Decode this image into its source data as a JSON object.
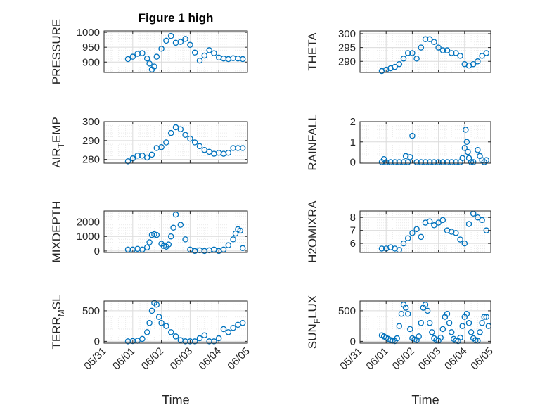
{
  "figure": {
    "title": "Figure 1 high"
  },
  "colors": {
    "marker": "#0072BD",
    "axis": "#262626",
    "grid_major": "#dcdcdc",
    "grid_minor": "#ebebeb"
  },
  "chart_data": [
    {
      "type": "scatter",
      "ylabel_main": "PRESSURE",
      "ylabel_sub": "",
      "ylabel_tail": "",
      "ylim": [
        865,
        1005
      ],
      "yticks": [
        900,
        950,
        1000
      ],
      "xlim": [
        "2020-05-31",
        "2020-06-05"
      ],
      "xticks": [
        "05/31",
        "06/01",
        "06/02",
        "06/03",
        "06/04",
        "06/05"
      ],
      "show_xticklabels": false,
      "grid": "major+minor",
      "x": [
        "05/31 20:00",
        "06/01 00:00",
        "06/01 04:00",
        "06/01 08:00",
        "06/01 12:00",
        "06/01 14:00",
        "06/01 16:00",
        "06/01 18:00",
        "06/01 20:00",
        "06/02 00:00",
        "06/02 04:00",
        "06/02 08:00",
        "06/02 12:00",
        "06/02 16:00",
        "06/02 20:00",
        "06/03 00:00",
        "06/03 04:00",
        "06/03 08:00",
        "06/03 12:00",
        "06/03 16:00",
        "06/03 20:00",
        "06/04 00:00",
        "06/04 04:00",
        "06/04 08:00",
        "06/04 12:00",
        "06/04 16:00",
        "06/04 20:00"
      ],
      "y": [
        910,
        918,
        928,
        930,
        912,
        895,
        875,
        885,
        918,
        945,
        972,
        988,
        965,
        968,
        978,
        958,
        932,
        905,
        922,
        940,
        930,
        915,
        912,
        910,
        913,
        912,
        910
      ]
    },
    {
      "type": "scatter",
      "ylabel_main": "THETA",
      "ylabel_sub": "",
      "ylabel_tail": "",
      "ylim": [
        286,
        301
      ],
      "yticks": [
        290,
        295,
        300
      ],
      "xlim": [
        "2020-05-31",
        "2020-06-05"
      ],
      "xticks": [
        "05/31",
        "06/01",
        "06/02",
        "06/03",
        "06/04",
        "06/05"
      ],
      "show_xticklabels": false,
      "grid": "major+minor",
      "x": [
        "05/31 20:00",
        "06/01 00:00",
        "06/01 04:00",
        "06/01 08:00",
        "06/01 12:00",
        "06/01 16:00",
        "06/01 20:00",
        "06/02 00:00",
        "06/02 04:00",
        "06/02 08:00",
        "06/02 12:00",
        "06/02 16:00",
        "06/02 20:00",
        "06/03 00:00",
        "06/03 04:00",
        "06/03 08:00",
        "06/03 12:00",
        "06/03 16:00",
        "06/03 20:00",
        "06/04 00:00",
        "06/04 04:00",
        "06/04 08:00",
        "06/04 12:00",
        "06/04 16:00",
        "06/04 20:00"
      ],
      "y": [
        286.5,
        287,
        287.5,
        288,
        289,
        291,
        293,
        293,
        291,
        295,
        298,
        298,
        297,
        295,
        294,
        294,
        293,
        293,
        292,
        289,
        288.5,
        289,
        290,
        292,
        293
      ]
    },
    {
      "type": "scatter",
      "ylabel_main": "AIR",
      "ylabel_sub": "T",
      "ylabel_tail": "EMP",
      "ylim": [
        278,
        300
      ],
      "yticks": [
        280,
        290,
        300
      ],
      "xlim": [
        "2020-05-31",
        "2020-06-05"
      ],
      "xticks": [
        "05/31",
        "06/01",
        "06/02",
        "06/03",
        "06/04",
        "06/05"
      ],
      "show_xticklabels": false,
      "grid": "major+minor",
      "x": [
        "05/31 20:00",
        "06/01 00:00",
        "06/01 04:00",
        "06/01 08:00",
        "06/01 12:00",
        "06/01 16:00",
        "06/01 20:00",
        "06/02 00:00",
        "06/02 04:00",
        "06/02 08:00",
        "06/02 12:00",
        "06/02 16:00",
        "06/02 20:00",
        "06/03 00:00",
        "06/03 04:00",
        "06/03 08:00",
        "06/03 12:00",
        "06/03 16:00",
        "06/03 20:00",
        "06/04 00:00",
        "06/04 04:00",
        "06/04 08:00",
        "06/04 12:00",
        "06/04 16:00",
        "06/04 20:00"
      ],
      "y": [
        279,
        280.5,
        282,
        282,
        281,
        282.5,
        286,
        286.5,
        289,
        294,
        297,
        296,
        293,
        291,
        289,
        287,
        285,
        284,
        283,
        283.5,
        283,
        283.5,
        286,
        286,
        286
      ]
    },
    {
      "type": "scatter",
      "ylabel_main": "RAINFALL",
      "ylabel_sub": "",
      "ylabel_tail": "",
      "ylim": [
        -0.05,
        2.0
      ],
      "yticks": [
        0,
        1,
        2
      ],
      "xlim": [
        "2020-05-31",
        "2020-06-05"
      ],
      "xticks": [
        "05/31",
        "06/01",
        "06/02",
        "06/03",
        "06/04",
        "06/05"
      ],
      "show_xticklabels": false,
      "grid": "major+minor",
      "x": [
        "05/31 20:00",
        "05/31 22:00",
        "06/01 00:00",
        "06/01 04:00",
        "06/01 08:00",
        "06/01 12:00",
        "06/01 16:00",
        "06/01 18:00",
        "06/01 20:00",
        "06/01 22:00",
        "06/02 00:00",
        "06/02 04:00",
        "06/02 08:00",
        "06/02 12:00",
        "06/02 16:00",
        "06/02 20:00",
        "06/03 00:00",
        "06/03 04:00",
        "06/03 08:00",
        "06/03 12:00",
        "06/03 16:00",
        "06/03 20:00",
        "06/03 22:00",
        "06/04 00:00",
        "06/04 01:00",
        "06/04 02:00",
        "06/04 03:00",
        "06/04 04:00",
        "06/04 06:00",
        "06/04 08:00",
        "06/04 12:00",
        "06/04 14:00",
        "06/04 16:00",
        "06/04 18:00",
        "06/04 20:00"
      ],
      "y": [
        0,
        0.15,
        0,
        0,
        0,
        0,
        0,
        0.3,
        0,
        0.25,
        1.3,
        0,
        0,
        0,
        0,
        0,
        0,
        0,
        0,
        0,
        0,
        0,
        0.2,
        0.7,
        1.6,
        1.0,
        0.5,
        0.2,
        0,
        0,
        0.6,
        0.3,
        0.1,
        0,
        0.1
      ]
    },
    {
      "type": "scatter",
      "ylabel_main": "MIXDEPTH",
      "ylabel_sub": "",
      "ylabel_tail": "",
      "ylim": [
        -100,
        2750
      ],
      "yticks": [
        0,
        1000,
        2000
      ],
      "xlim": [
        "2020-05-31",
        "2020-06-05"
      ],
      "xticks": [
        "05/31",
        "06/01",
        "06/02",
        "06/03",
        "06/04",
        "06/05"
      ],
      "show_xticklabels": false,
      "grid": "major+minor",
      "x": [
        "05/31 20:00",
        "06/01 00:00",
        "06/01 04:00",
        "06/01 08:00",
        "06/01 12:00",
        "06/01 14:00",
        "06/01 16:00",
        "06/01 18:00",
        "06/01 20:00",
        "06/02 00:00",
        "06/02 02:00",
        "06/02 04:00",
        "06/02 06:00",
        "06/02 08:00",
        "06/02 10:00",
        "06/02 12:00",
        "06/02 16:00",
        "06/02 20:00",
        "06/03 00:00",
        "06/03 04:00",
        "06/03 08:00",
        "06/03 12:00",
        "06/03 16:00",
        "06/03 20:00",
        "06/04 00:00",
        "06/04 04:00",
        "06/04 08:00",
        "06/04 12:00",
        "06/04 14:00",
        "06/04 16:00",
        "06/04 18:00",
        "06/04 20:00"
      ],
      "y": [
        100,
        100,
        150,
        100,
        250,
        600,
        1100,
        1150,
        1100,
        500,
        350,
        300,
        450,
        1000,
        1600,
        2500,
        1800,
        800,
        100,
        0,
        50,
        0,
        50,
        100,
        0,
        100,
        400,
        800,
        1200,
        1500,
        1400,
        200
      ]
    },
    {
      "type": "scatter",
      "ylabel_main": "H2OMIXRA",
      "ylabel_sub": "",
      "ylabel_tail": "",
      "ylim": [
        5.3,
        8.5
      ],
      "yticks": [
        6,
        7,
        8
      ],
      "xlim": [
        "2020-05-31",
        "2020-06-05"
      ],
      "xticks": [
        "05/31",
        "06/01",
        "06/02",
        "06/03",
        "06/04",
        "06/05"
      ],
      "show_xticklabels": false,
      "grid": "major+minor",
      "x": [
        "05/31 20:00",
        "06/01 00:00",
        "06/01 04:00",
        "06/01 08:00",
        "06/01 12:00",
        "06/01 16:00",
        "06/01 20:00",
        "06/02 00:00",
        "06/02 04:00",
        "06/02 08:00",
        "06/02 12:00",
        "06/02 16:00",
        "06/02 20:00",
        "06/03 00:00",
        "06/03 04:00",
        "06/03 08:00",
        "06/03 12:00",
        "06/03 16:00",
        "06/03 20:00",
        "06/04 00:00",
        "06/04 04:00",
        "06/04 08:00",
        "06/04 12:00",
        "06/04 16:00",
        "06/04 20:00"
      ],
      "y": [
        5.6,
        5.6,
        5.7,
        5.6,
        5.5,
        6.0,
        6.4,
        6.8,
        7.1,
        6.5,
        7.6,
        7.7,
        7.4,
        7.6,
        7.8,
        7.0,
        6.9,
        6.8,
        6.3,
        6.0,
        7.5,
        8.3,
        8.0,
        7.8,
        7.0
      ]
    },
    {
      "type": "scatter",
      "ylabel_main": "TERR",
      "ylabel_sub": "M",
      "ylabel_tail": "SL",
      "ylim": [
        -30,
        660
      ],
      "yticks": [
        0,
        500
      ],
      "xlim": [
        "2020-05-31",
        "2020-06-05"
      ],
      "xticks": [
        "05/31",
        "06/01",
        "06/02",
        "06/03",
        "06/04",
        "06/05"
      ],
      "show_xticklabels": true,
      "grid": "major+minor",
      "xlabel": "Time",
      "x": [
        "05/31 20:00",
        "06/01 00:00",
        "06/01 04:00",
        "06/01 08:00",
        "06/01 12:00",
        "06/01 14:00",
        "06/01 16:00",
        "06/01 18:00",
        "06/01 20:00",
        "06/01 22:00",
        "06/02 00:00",
        "06/02 04:00",
        "06/02 08:00",
        "06/02 12:00",
        "06/02 16:00",
        "06/02 20:00",
        "06/03 00:00",
        "06/03 04:00",
        "06/03 08:00",
        "06/03 12:00",
        "06/03 16:00",
        "06/03 20:00",
        "06/04 00:00",
        "06/04 04:00",
        "06/04 08:00",
        "06/04 12:00",
        "06/04 16:00",
        "06/04 20:00"
      ],
      "y": [
        0,
        5,
        10,
        40,
        150,
        300,
        500,
        630,
        600,
        400,
        300,
        250,
        150,
        80,
        20,
        0,
        0,
        0,
        50,
        100,
        0,
        0,
        50,
        200,
        150,
        220,
        270,
        300
      ]
    },
    {
      "type": "scatter",
      "ylabel_main": "SUN",
      "ylabel_sub": "F",
      "ylabel_tail": "LUX",
      "ylim": [
        -30,
        660
      ],
      "yticks": [
        0,
        500
      ],
      "xlim": [
        "2020-05-31",
        "2020-06-05"
      ],
      "xticks": [
        "05/31",
        "06/01",
        "06/02",
        "06/03",
        "06/04",
        "06/05"
      ],
      "show_xticklabels": true,
      "grid": "major+minor",
      "xlabel": "Time",
      "x": [
        "05/31 20:00",
        "05/31 22:00",
        "06/01 00:00",
        "06/01 02:00",
        "06/01 04:00",
        "06/01 06:00",
        "06/01 08:00",
        "06/01 10:00",
        "06/01 12:00",
        "06/01 14:00",
        "06/01 16:00",
        "06/01 18:00",
        "06/01 20:00",
        "06/01 22:00",
        "06/02 00:00",
        "06/02 02:00",
        "06/02 04:00",
        "06/02 06:00",
        "06/02 08:00",
        "06/02 10:00",
        "06/02 12:00",
        "06/02 14:00",
        "06/02 16:00",
        "06/02 18:00",
        "06/02 20:00",
        "06/02 22:00",
        "06/03 00:00",
        "06/03 02:00",
        "06/03 04:00",
        "06/03 06:00",
        "06/03 08:00",
        "06/03 10:00",
        "06/03 12:00",
        "06/03 14:00",
        "06/03 16:00",
        "06/03 18:00",
        "06/03 20:00",
        "06/03 22:00",
        "06/04 00:00",
        "06/04 02:00",
        "06/04 04:00",
        "06/04 06:00",
        "06/04 08:00",
        "06/04 10:00",
        "06/04 12:00",
        "06/04 14:00",
        "06/04 16:00",
        "06/04 18:00",
        "06/04 20:00",
        "06/04 22:00"
      ],
      "y": [
        100,
        80,
        60,
        40,
        20,
        10,
        5,
        50,
        250,
        450,
        600,
        550,
        450,
        200,
        50,
        30,
        20,
        80,
        300,
        550,
        600,
        500,
        300,
        150,
        50,
        20,
        10,
        60,
        200,
        400,
        450,
        300,
        150,
        40,
        10,
        5,
        60,
        250,
        400,
        450,
        300,
        150,
        50,
        20,
        10,
        150,
        300,
        400,
        400,
        250
      ]
    }
  ]
}
